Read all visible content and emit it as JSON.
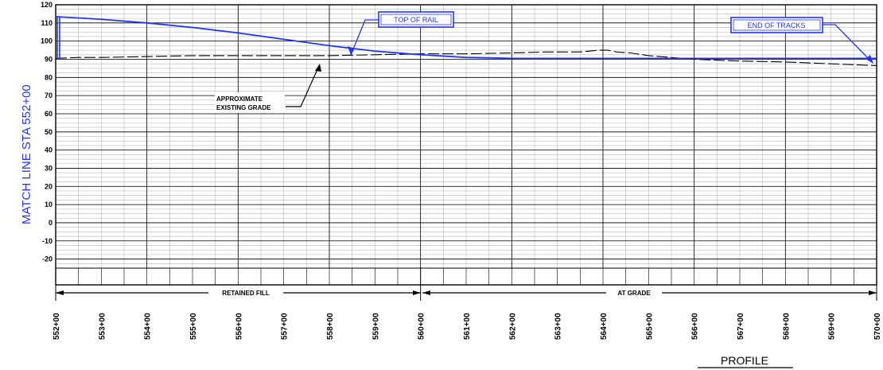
{
  "match_line_label": "MATCH LINE  STA  552+00",
  "y_axis_ticks": [
    "120",
    "110",
    "100",
    "90",
    "80",
    "70",
    "60",
    "50",
    "40",
    "30",
    "20",
    "10",
    "0",
    "-10",
    "-20"
  ],
  "station_labels": [
    "552+00",
    "553+00",
    "554+00",
    "555+00",
    "556+00",
    "557+00",
    "558+00",
    "559+00",
    "560+00",
    "561+00",
    "562+00",
    "563+00",
    "564+00",
    "565+00",
    "566+00",
    "567+00",
    "568+00",
    "569+00",
    "570+00"
  ],
  "callouts": {
    "top_of_rail": "TOP OF RAIL",
    "end_of_tracks": "END OF TRACKS"
  },
  "note": {
    "line1": "APPROXIMATE",
    "line2": "EXISTING GRADE"
  },
  "segments": {
    "retained_fill": "RETAINED FILL",
    "at_grade": "AT GRADE"
  },
  "title": "PROFILE",
  "colors": {
    "design_line": "#2233ff",
    "grid_major": "#000000",
    "grid_minor": "#b8b8b8"
  },
  "profile_data": {
    "top_of_rail": {
      "stations": [
        552,
        553,
        554,
        555,
        556,
        557,
        558,
        559,
        560,
        561,
        562,
        563,
        564,
        565,
        566,
        567,
        568,
        569,
        570
      ],
      "elevations": [
        113.5,
        112.0,
        110.0,
        107.5,
        104.5,
        101.0,
        97.5,
        94.5,
        92.5,
        91.0,
        90.5,
        90.5,
        90.5,
        90.5,
        90.5,
        90.5,
        90.5,
        90.5,
        90.5
      ]
    },
    "existing_grade": {
      "stations": [
        552,
        552.5,
        553,
        554,
        555,
        556,
        557,
        558,
        559,
        560,
        561,
        562,
        562.7,
        563,
        563.5,
        563.9,
        564.1,
        564.3,
        564.6,
        565,
        566,
        567,
        568,
        569,
        570
      ],
      "elevations": [
        90.5,
        91.0,
        91.0,
        91.5,
        92.0,
        92.0,
        92.0,
        92.0,
        92.5,
        93.0,
        93.0,
        93.5,
        94.0,
        94.0,
        94.0,
        95.0,
        95.0,
        94.0,
        93.5,
        92.0,
        90.0,
        89.0,
        88.5,
        87.5,
        86.5
      ]
    }
  }
}
